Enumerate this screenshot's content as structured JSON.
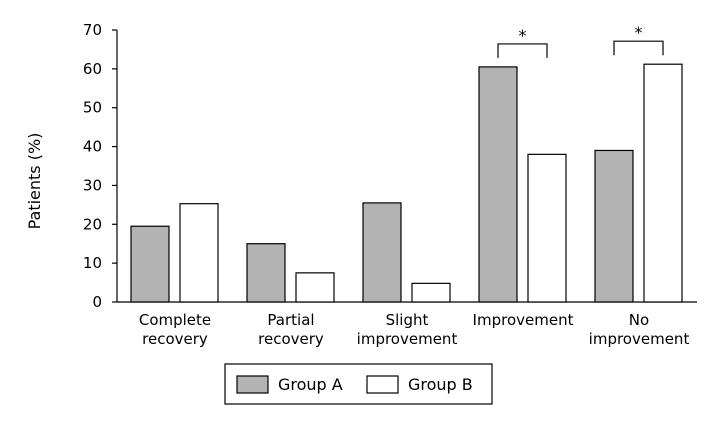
{
  "chart_data": {
    "type": "bar",
    "title": "",
    "xlabel": "",
    "ylabel": "Patients (%)",
    "ylim": [
      0,
      70
    ],
    "yticks": [
      0,
      10,
      20,
      30,
      40,
      50,
      60,
      70
    ],
    "grid": false,
    "legend_position": "bottom",
    "categories": [
      [
        "Complete",
        "recovery"
      ],
      [
        "Partial",
        "recovery"
      ],
      [
        "Slight",
        "improvement"
      ],
      [
        "Improvement"
      ],
      [
        "No",
        "improvement"
      ]
    ],
    "series": [
      {
        "name": "Group A",
        "color": "#b3b3b3",
        "values": [
          19.5,
          15,
          25.5,
          60.5,
          39
        ]
      },
      {
        "name": "Group B",
        "color": "#ffffff",
        "values": [
          25.3,
          7.5,
          4.8,
          38,
          61.2
        ]
      }
    ],
    "annotations": [
      {
        "category_index": 3,
        "text": "*"
      },
      {
        "category_index": 4,
        "text": "*"
      }
    ]
  }
}
